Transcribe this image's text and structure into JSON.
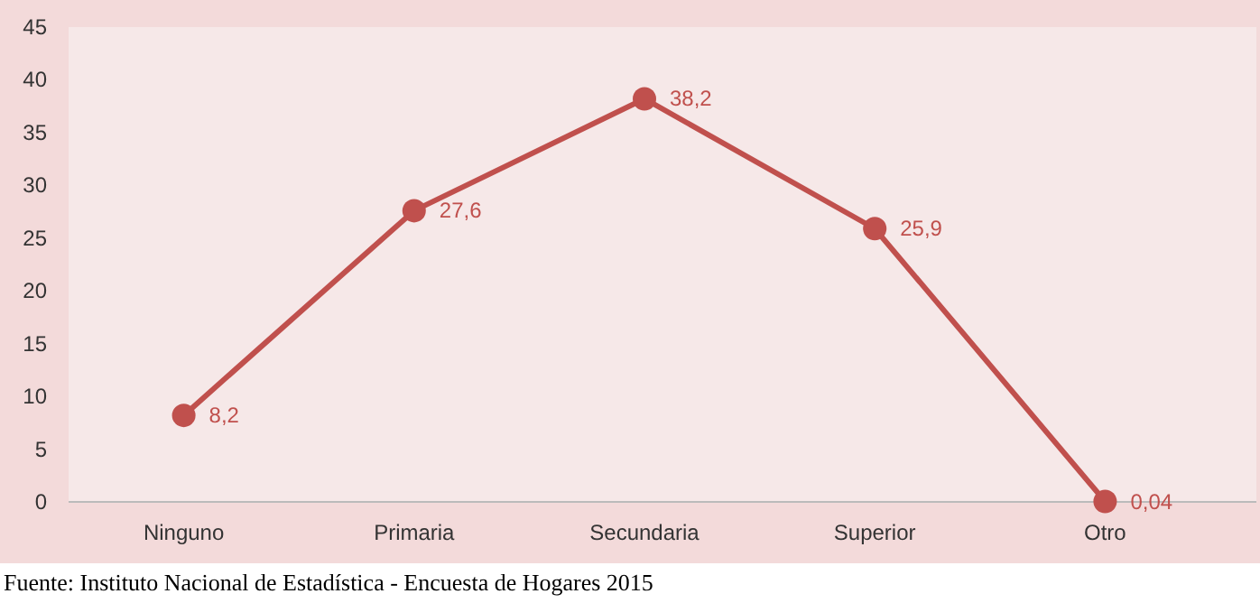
{
  "chart_data": {
    "type": "line",
    "categories": [
      "Ninguno",
      "Primaria",
      "Secundaria",
      "Superior",
      "Otro"
    ],
    "series": [
      {
        "color": "#c0504d",
        "values": [
          8.2,
          27.6,
          38.2,
          25.9,
          0.04
        ],
        "value_labels": [
          "8,2",
          "27,6",
          "38,2",
          "25,9",
          "0,04"
        ]
      }
    ],
    "ylim": [
      0,
      45
    ],
    "yticks": [
      0,
      5,
      10,
      15,
      20,
      25,
      30,
      35,
      40,
      45
    ],
    "marker": "circle",
    "line_style": "solid",
    "grid": false,
    "legend": false,
    "annotations": [
      "Fuente: Instituto Nacional de Estadística - Encuesta de Hogares 2015"
    ]
  }
}
